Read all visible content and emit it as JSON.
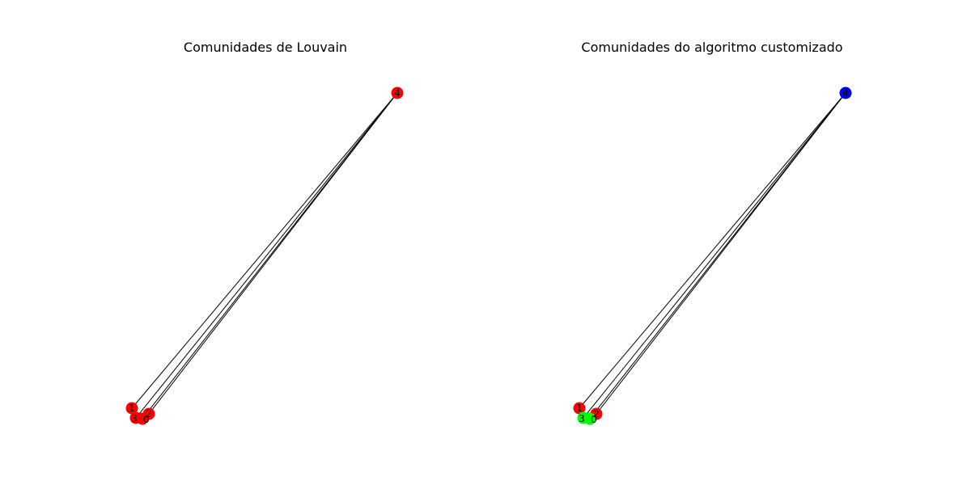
{
  "panels": [
    {
      "title": "Comunidades de Louvain",
      "nodes": [
        {
          "id": "0",
          "color": "#ff0000"
        },
        {
          "id": "1",
          "color": "#ff0000"
        },
        {
          "id": "2",
          "color": "#ff0000"
        },
        {
          "id": "3",
          "color": "#ff0000"
        },
        {
          "id": "4",
          "color": "#ff0000"
        }
      ],
      "edges": [
        [
          "4",
          "1"
        ],
        [
          "4",
          "3"
        ],
        [
          "4",
          "0"
        ],
        [
          "4",
          "2"
        ],
        [
          "1",
          "3"
        ],
        [
          "3",
          "0"
        ],
        [
          "0",
          "2"
        ]
      ]
    },
    {
      "title": "Comunidades do algoritmo customizado",
      "nodes": [
        {
          "id": "0",
          "color": "#00ff00"
        },
        {
          "id": "1",
          "color": "#ff0000"
        },
        {
          "id": "2",
          "color": "#ff0000"
        },
        {
          "id": "3",
          "color": "#00ff00"
        },
        {
          "id": "4",
          "color": "#0000ff"
        }
      ],
      "edges": [
        [
          "4",
          "1"
        ],
        [
          "4",
          "3"
        ],
        [
          "4",
          "0"
        ],
        [
          "4",
          "2"
        ],
        [
          "1",
          "3"
        ],
        [
          "3",
          "0"
        ],
        [
          "0",
          "2"
        ]
      ]
    }
  ]
}
